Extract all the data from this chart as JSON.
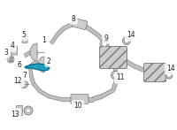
{
  "bg_color": "#ffffff",
  "highlight_color": "#1199bb",
  "pipe_color": "#b8b8b8",
  "pipe_edge": "#888888",
  "part_fill": "#cccccc",
  "part_edge": "#777777",
  "hatch_color": "#999999",
  "text_color": "#222222",
  "label_fs": 5.5,
  "line_width": 2.5,
  "thin_lw": 1.5
}
